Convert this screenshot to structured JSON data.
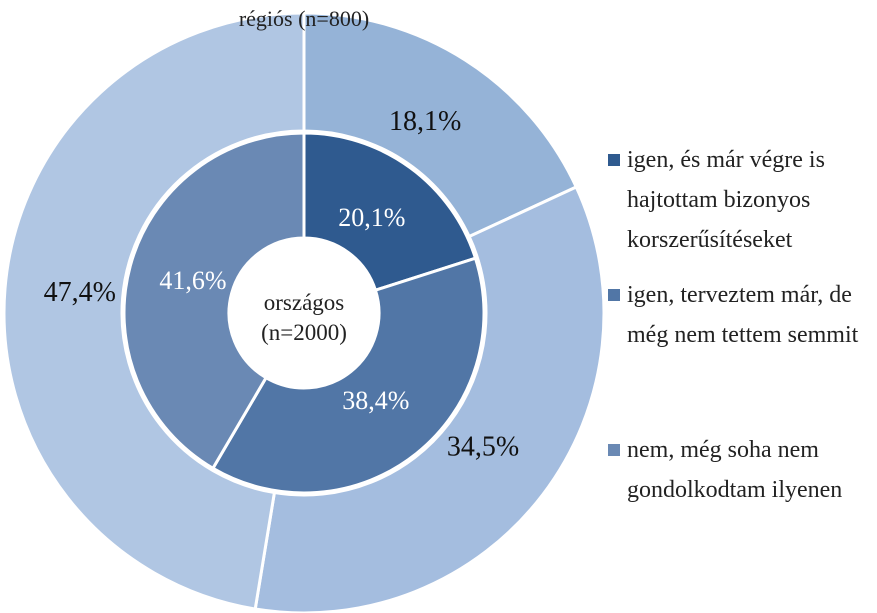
{
  "chart_data": {
    "type": "donut",
    "categories": [
      "igen, és már végre is hajtottam bizonyos korszerűsítéseket",
      "igen, terveztem már, de még nem tettem semmit",
      "nem, még soha nem gondolkodtam ilyenen"
    ],
    "series": [
      {
        "name": "régiós (n=800)",
        "values": [
          18.1,
          34.5,
          47.4
        ],
        "value_labels": [
          "18,1%",
          "34,5%",
          "47,4%"
        ],
        "colors": [
          "#95b3d7",
          "#a4bddf",
          "#b0c6e3"
        ]
      },
      {
        "name": "országos (n=2000)",
        "values": [
          20.1,
          38.4,
          41.6
        ],
        "value_labels": [
          "20,1%",
          "38,4%",
          "41,6%"
        ],
        "colors": [
          "#2f5a8f",
          "#5176a6",
          "#6a89b4"
        ]
      }
    ],
    "legend": "right"
  }
}
